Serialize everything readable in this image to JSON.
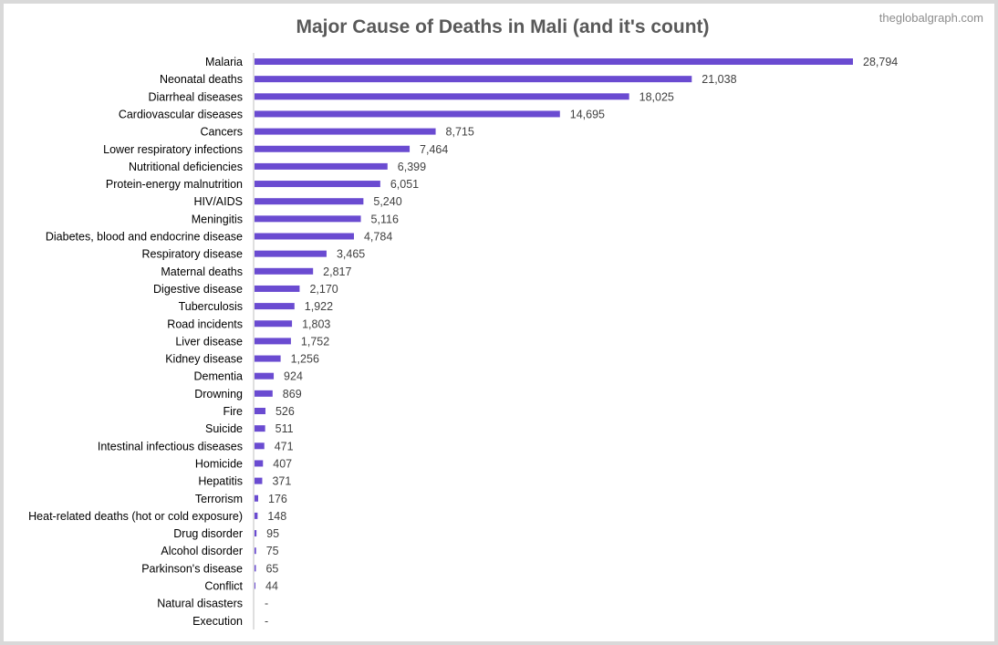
{
  "watermark": "theglobalgraph.com",
  "chart_data": {
    "type": "bar",
    "orientation": "horizontal",
    "title": "Major Cause of Deaths in Mali (and it's count)",
    "xlabel": "",
    "ylabel": "",
    "xlim": [
      0,
      28794
    ],
    "grid": false,
    "legend": "none",
    "bar_color": "#6a4bd1",
    "categories": [
      "Malaria",
      "Neonatal deaths",
      "Diarrheal diseases",
      "Cardiovascular diseases",
      "Cancers",
      "Lower respiratory infections",
      "Nutritional deficiencies",
      "Protein-energy malnutrition",
      "HIV/AIDS",
      "Meningitis",
      "Diabetes, blood and endocrine disease",
      "Respiratory disease",
      "Maternal deaths",
      "Digestive disease",
      "Tuberculosis",
      "Road incidents",
      "Liver disease",
      "Kidney disease",
      "Dementia",
      "Drowning",
      "Fire",
      "Suicide",
      "Intestinal infectious diseases",
      "Homicide",
      "Hepatitis",
      "Terrorism",
      "Heat-related deaths (hot or cold exposure)",
      "Drug disorder",
      "Alcohol disorder",
      "Parkinson's disease",
      "Conflict",
      "Natural disasters",
      "Execution"
    ],
    "values": [
      28794,
      21038,
      18025,
      14695,
      8715,
      7464,
      6399,
      6051,
      5240,
      5116,
      4784,
      3465,
      2817,
      2170,
      1922,
      1803,
      1752,
      1256,
      924,
      869,
      526,
      511,
      471,
      407,
      371,
      176,
      148,
      95,
      75,
      65,
      44,
      0,
      0
    ],
    "value_labels": [
      "28,794",
      "21,038",
      "18,025",
      "14,695",
      "8,715",
      "7,464",
      "6,399",
      "6,051",
      "5,240",
      "5,116",
      "4,784",
      "3,465",
      "2,817",
      "2,170",
      "1,922",
      "1,803",
      "1,752",
      "1,256",
      "924",
      "869",
      "526",
      "511",
      "471",
      "407",
      "371",
      "176",
      "148",
      "95",
      "75",
      "65",
      "44",
      "-",
      "-"
    ]
  }
}
